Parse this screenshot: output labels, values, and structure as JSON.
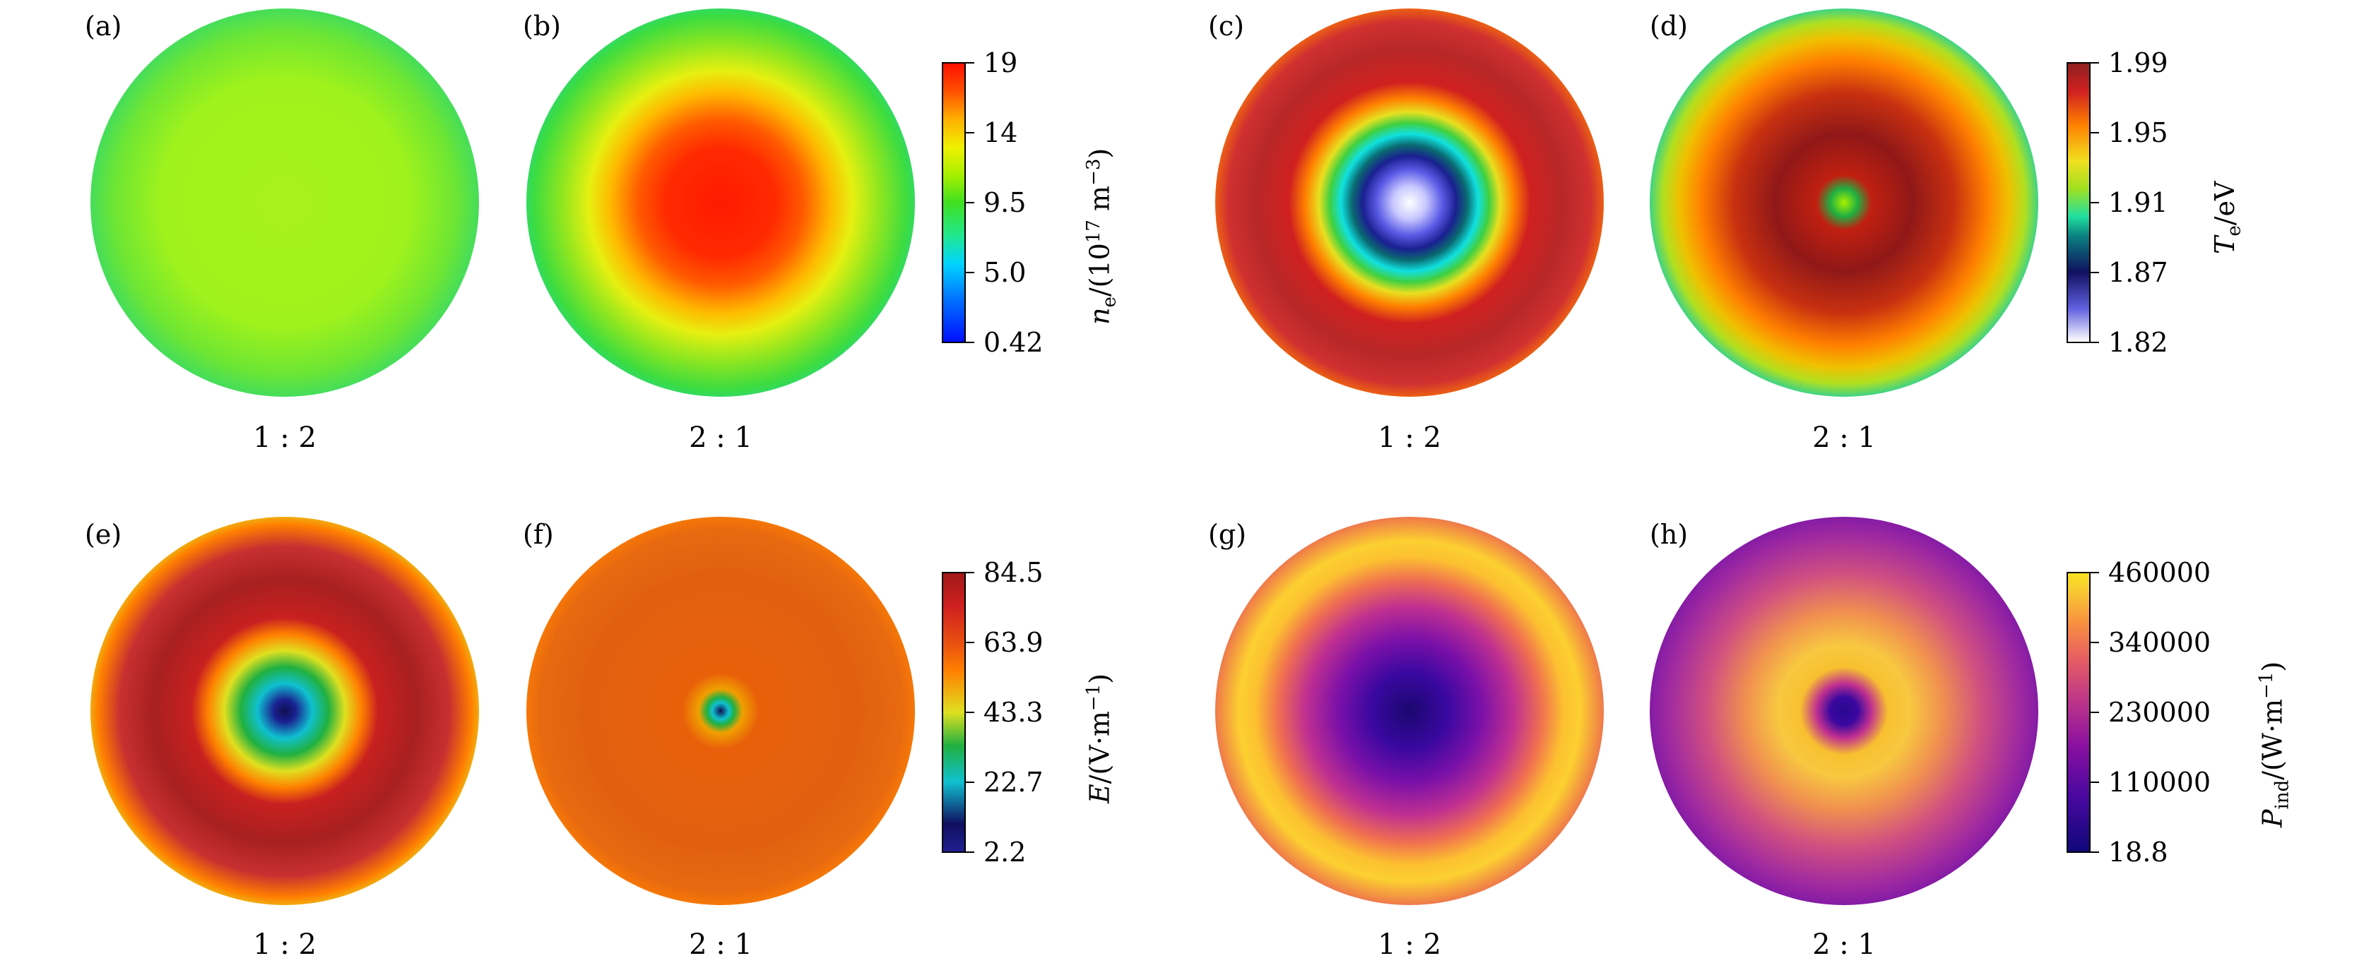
{
  "panels": {
    "a": {
      "label": "(a)",
      "ratio": "1 : 2"
    },
    "b": {
      "label": "(b)",
      "ratio": "2 : 1"
    },
    "c": {
      "label": "(c)",
      "ratio": "1 : 2"
    },
    "d": {
      "label": "(d)",
      "ratio": "2 : 1"
    },
    "e": {
      "label": "(e)",
      "ratio": "1 : 2"
    },
    "f": {
      "label": "(f)",
      "ratio": "2 : 1"
    },
    "g": {
      "label": "(g)",
      "ratio": "1 : 2"
    },
    "h": {
      "label": "(h)",
      "ratio": "2 : 1"
    }
  },
  "colorbars": {
    "ne": {
      "label_var": "n",
      "label_sub": "e",
      "label_rest": "/(10",
      "label_sup": "17",
      "label_unit": " m",
      "label_sup2": "−3",
      "label_close": ")",
      "ticks": [
        "19",
        "14",
        "9.5",
        "5.0",
        "0.42"
      ],
      "colormap": "jet"
    },
    "te": {
      "label_var": "T",
      "label_sub": "e",
      "label_rest": "/eV",
      "ticks": [
        "1.99",
        "1.95",
        "1.91",
        "1.87",
        "1.82"
      ],
      "colormap": "temperature"
    },
    "e": {
      "label_var": "E",
      "label_rest": "/(V·m",
      "label_sup": "−1",
      "label_close": ")",
      "ticks": [
        "84.5",
        "63.9",
        "43.3",
        "22.7",
        "2.2"
      ],
      "colormap": "field"
    },
    "p": {
      "label_var": "P",
      "label_sub": "ind",
      "label_rest": "/(W·m",
      "label_sup": "−1",
      "label_close": ")",
      "ticks": [
        "460000",
        "340000",
        "230000",
        "110000",
        "18.8"
      ],
      "colormap": "plasma"
    }
  }
}
